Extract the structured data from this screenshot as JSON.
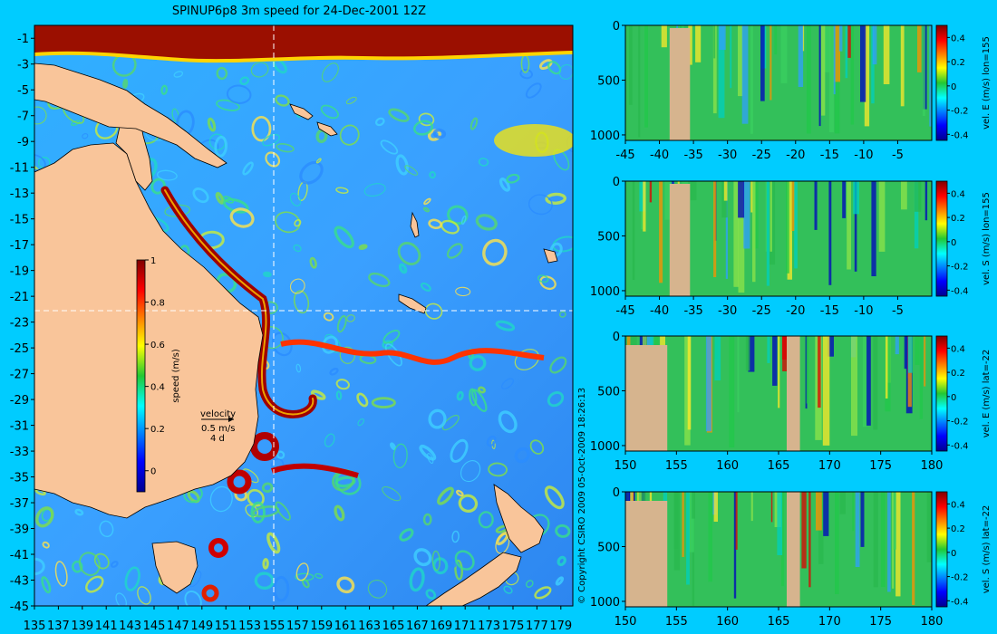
{
  "title": "SPINUP6p8 3m speed for 24-Dec-2001 12Z",
  "copyright": "© Copyright CSIRO 2009   05-Oct-2009 18:26:13",
  "colors": {
    "background": "#00ccff",
    "land": "#f9c59a",
    "section_land": "#d6b48e",
    "ocean_mid": "#2ea0ff",
    "current_core": "#8b0000"
  },
  "chart_data": [
    {
      "type": "heatmap",
      "name": "speed map",
      "x_ticks": [
        "135",
        "137",
        "139",
        "141",
        "143",
        "145",
        "147",
        "149",
        "151",
        "153",
        "155",
        "157",
        "159",
        "161",
        "163",
        "165",
        "167",
        "169",
        "171",
        "173",
        "175",
        "177",
        "179"
      ],
      "y_ticks": [
        "-1",
        "-3",
        "-5",
        "-7",
        "-9",
        "-11",
        "-13",
        "-15",
        "-17",
        "-19",
        "-21",
        "-23",
        "-25",
        "-27",
        "-29",
        "-31",
        "-33",
        "-35",
        "-37",
        "-39",
        "-41",
        "-43",
        "-45"
      ],
      "xlim": [
        135,
        180
      ],
      "ylim": [
        -45,
        0
      ],
      "section_lines": {
        "lon": 155,
        "lat": -22
      },
      "colorbar": {
        "label": "speed (m/s)",
        "ticks": [
          "1",
          "0.8",
          "0.6",
          "0.4",
          "0.2",
          "0"
        ],
        "range": [
          -0.1,
          1
        ]
      },
      "velocity_legend": {
        "title": "velocity",
        "scale": "0.5 m/s",
        "period": "4 d"
      }
    },
    {
      "type": "heatmap",
      "name": "section 1",
      "x_ticks": [
        "-45",
        "-40",
        "-35",
        "-30",
        "-25",
        "-20",
        "-15",
        "-10",
        "-5"
      ],
      "y_ticks": [
        "0",
        "500",
        "1000"
      ],
      "xlim": [
        -45,
        0
      ],
      "ylim": [
        1050,
        0
      ],
      "colorbar_label": "vel. E (m/s) lon=155",
      "colorbar_ticks": [
        "0.4",
        "0.2",
        "0",
        "-0.2",
        "-0.4"
      ]
    },
    {
      "type": "heatmap",
      "name": "section 2",
      "x_ticks": [
        "-45",
        "-40",
        "-35",
        "-30",
        "-25",
        "-20",
        "-15",
        "-10",
        "-5"
      ],
      "y_ticks": [
        "0",
        "500",
        "1000"
      ],
      "xlim": [
        -45,
        0
      ],
      "ylim": [
        1050,
        0
      ],
      "colorbar_label": "vel. S (m/s) lon=155",
      "colorbar_ticks": [
        "0.4",
        "0.2",
        "0",
        "-0.2",
        "-0.4"
      ]
    },
    {
      "type": "heatmap",
      "name": "section 3",
      "x_ticks": [
        "150",
        "155",
        "160",
        "165",
        "170",
        "175",
        "180"
      ],
      "y_ticks": [
        "0",
        "500",
        "1000"
      ],
      "xlim": [
        150,
        180
      ],
      "ylim": [
        1050,
        0
      ],
      "colorbar_label": "vel. E (m/s) lat=-22",
      "colorbar_ticks": [
        "0.4",
        "0.2",
        "0",
        "-0.2",
        "-0.4"
      ]
    },
    {
      "type": "heatmap",
      "name": "section 4",
      "x_ticks": [
        "150",
        "155",
        "160",
        "165",
        "170",
        "175",
        "180"
      ],
      "y_ticks": [
        "0",
        "500",
        "1000"
      ],
      "xlim": [
        150,
        180
      ],
      "ylim": [
        1050,
        0
      ],
      "colorbar_label": "vel. S (m/s) lat=-22",
      "colorbar_ticks": [
        "0.4",
        "0.2",
        "0",
        "-0.2",
        "-0.4"
      ]
    }
  ]
}
